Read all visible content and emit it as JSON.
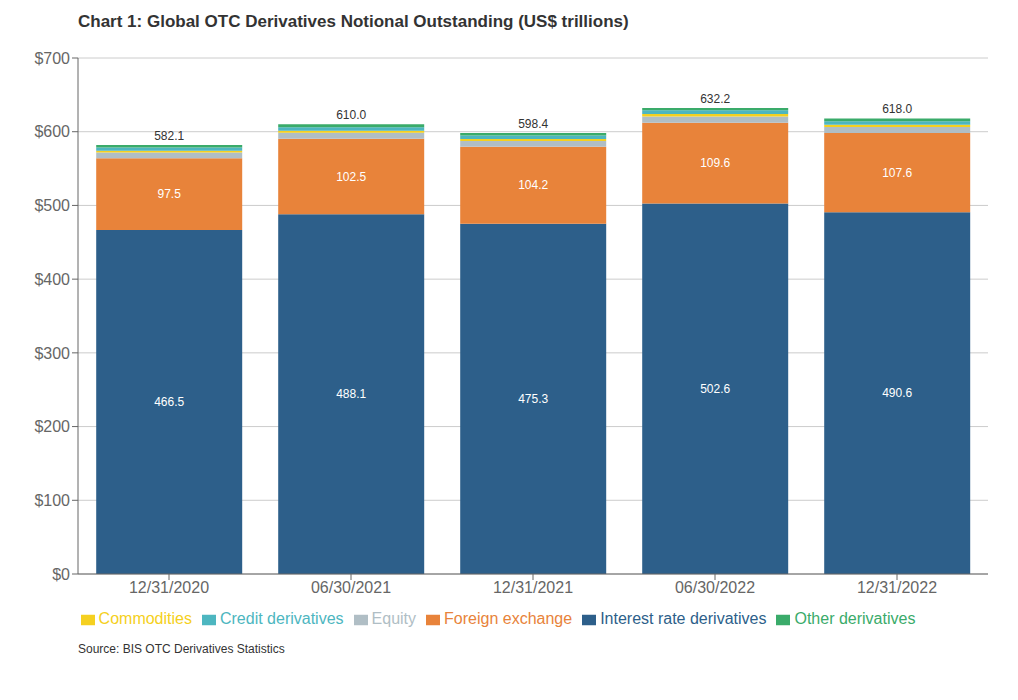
{
  "chart_data": {
    "type": "bar",
    "title": "Chart 1: Global OTC Derivatives Notional Outstanding (US$ trillions)",
    "annotations": [
      "Source: BIS OTC Derivatives Statistics"
    ],
    "categories": [
      "12/31/2020",
      "06/30/2021",
      "12/31/2021",
      "06/30/2022",
      "12/31/2022"
    ],
    "stacked": true,
    "series": [
      {
        "name": "Interest rate derivatives",
        "color": "#2D5F8A",
        "values": [
          466.5,
          488.1,
          475.3,
          502.6,
          490.6
        ],
        "data_labels": true
      },
      {
        "name": "Foreign exchange",
        "color": "#E8833A",
        "values": [
          97.5,
          102.5,
          104.2,
          109.6,
          107.6
        ],
        "data_labels": true
      },
      {
        "name": "Equity",
        "color": "#B0BEC5",
        "values": [
          7.7,
          8.0,
          7.9,
          8.5,
          8.3
        ]
      },
      {
        "name": "Commodities",
        "color": "#F5D020",
        "values": [
          2.4,
          2.7,
          2.6,
          3.5,
          3.0
        ]
      },
      {
        "name": "Credit derivatives",
        "color": "#4DB6C0",
        "values": [
          4.5,
          4.8,
          4.9,
          4.8,
          4.8
        ]
      },
      {
        "name": "Other derivatives",
        "color": "#3AAB6A",
        "values": [
          3.5,
          3.9,
          3.5,
          3.2,
          3.7
        ]
      }
    ],
    "totals": {
      "values": [
        582.1,
        610.0,
        598.4,
        632.2,
        618.0
      ],
      "value_labels": [
        "582.1",
        "610.0",
        "598.4",
        "632.2",
        "618.0"
      ]
    },
    "ylim": [
      0,
      700
    ],
    "yticks": [
      {
        "value": 0,
        "label": "$0"
      },
      {
        "value": 100,
        "label": "$100"
      },
      {
        "value": 200,
        "label": "$200"
      },
      {
        "value": 300,
        "label": "$300"
      },
      {
        "value": 400,
        "label": "$400"
      },
      {
        "value": 500,
        "label": "$500"
      },
      {
        "value": 600,
        "label": "$600"
      },
      {
        "value": 700,
        "label": "$700"
      }
    ],
    "grid": "y",
    "legend": "bottom"
  }
}
